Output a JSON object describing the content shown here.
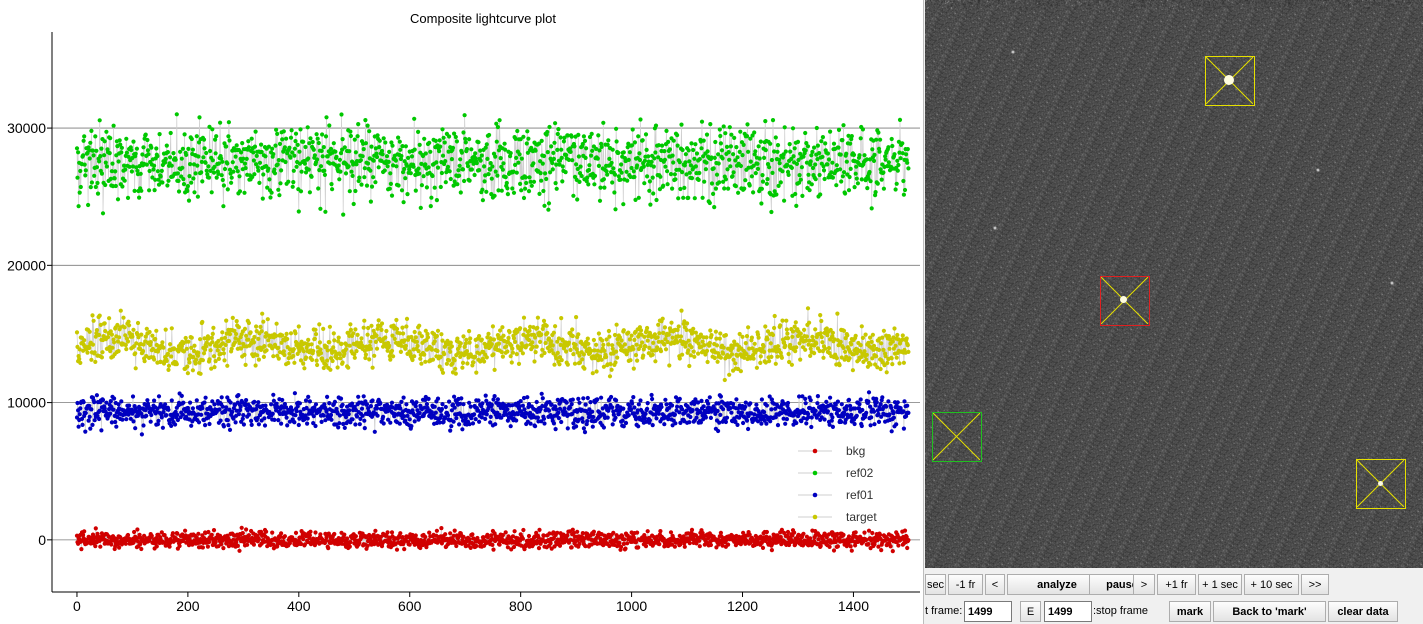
{
  "chart_data": {
    "type": "scatter",
    "title": "Composite lightcurve plot",
    "xlabel": "",
    "ylabel": "",
    "xlim": [
      -45,
      1520
    ],
    "ylim": [
      -3800,
      37000
    ],
    "x_ticks": [
      0,
      200,
      400,
      600,
      800,
      1000,
      1200,
      1400
    ],
    "y_ticks": [
      0,
      10000,
      20000,
      30000
    ],
    "grid": "horizontal",
    "legend_position": "bottom-right",
    "n_points": 1500,
    "series": [
      {
        "name": "target",
        "color": "#c8c800",
        "mean": 14200,
        "spread": 1400
      },
      {
        "name": "ref01",
        "color": "#0000c0",
        "mean": 9300,
        "spread": 1000
      },
      {
        "name": "ref02",
        "color": "#00c800",
        "mean": 27500,
        "spread": 2400
      },
      {
        "name": "bkg",
        "color": "#d00000",
        "mean": 0,
        "spread": 550
      }
    ]
  },
  "legend_order": [
    "bkg",
    "ref02",
    "ref01",
    "target"
  ],
  "apertures": [
    {
      "name": "target-aperture",
      "color": "red"
    },
    {
      "name": "ref01-aperture",
      "color": "yellow"
    },
    {
      "name": "ref02-aperture",
      "color": "yellow"
    },
    {
      "name": "bkg-aperture",
      "color": "green"
    }
  ],
  "controls": {
    "minus_sec_label": "sec",
    "minus_1fr_label": "-1 fr",
    "prev_label": "<",
    "analyze_label": "analyze",
    "pause_label": "pause",
    "next_label": ">",
    "plus_1fr_label": "+1 fr",
    "plus_1sec_label": "+ 1 sec",
    "plus_10sec_label": "+ 10 sec",
    "end_label": ">>",
    "start_frame_label": "t frame:",
    "start_frame_value": "1499",
    "e_label": "E",
    "stop_frame_value": "1499",
    "stop_frame_label": ":stop frame",
    "mark_label": "mark",
    "back_to_mark_label": "Back to 'mark'",
    "clear_data_label": "clear data"
  }
}
